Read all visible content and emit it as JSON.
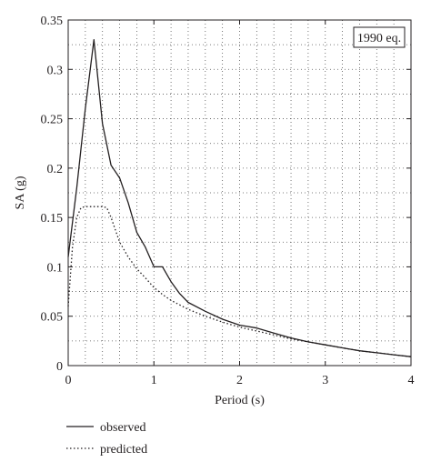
{
  "chart_data": {
    "type": "line",
    "title": "",
    "annotation": "1990 eq.",
    "xlabel": "Period (s)",
    "ylabel": "SA (g)",
    "xlim": [
      0,
      4
    ],
    "ylim": [
      0,
      0.35
    ],
    "xticks": [
      0,
      1,
      2,
      3,
      4
    ],
    "xtick_labels": [
      "0",
      "1",
      "2",
      "3",
      "4"
    ],
    "yticks": [
      0,
      0.05,
      0.1,
      0.15,
      0.2,
      0.25,
      0.3,
      0.35
    ],
    "ytick_labels": [
      "0",
      "0.05",
      "0.1",
      "0.15",
      "0.2",
      "0.25",
      "0.3",
      "0.35"
    ],
    "grid": true,
    "grid_style": "dotted",
    "minor_grid_step_x": 0.2,
    "minor_grid_step_y": 0.025,
    "legend_position": "bottom-left, below plot",
    "series": [
      {
        "name": "observed",
        "style": "solid",
        "color": "#231f20",
        "x": [
          0,
          0.1,
          0.2,
          0.3,
          0.4,
          0.5,
          0.6,
          0.7,
          0.8,
          0.9,
          1.0,
          1.1,
          1.2,
          1.3,
          1.4,
          1.6,
          1.8,
          2.0,
          2.2,
          2.4,
          2.6,
          2.8,
          3.0,
          3.2,
          3.4,
          3.6,
          3.8,
          4.0
        ],
        "y": [
          0.11,
          0.18,
          0.26,
          0.33,
          0.245,
          0.203,
          0.19,
          0.165,
          0.135,
          0.12,
          0.1,
          0.1,
          0.085,
          0.073,
          0.064,
          0.055,
          0.047,
          0.041,
          0.038,
          0.033,
          0.028,
          0.024,
          0.021,
          0.018,
          0.015,
          0.013,
          0.011,
          0.009
        ]
      },
      {
        "name": "predicted",
        "style": "dotted",
        "color": "#231f20",
        "x": [
          0,
          0.05,
          0.1,
          0.15,
          0.2,
          0.3,
          0.4,
          0.45,
          0.5,
          0.6,
          0.7,
          0.8,
          0.9,
          1.0,
          1.1,
          1.2,
          1.4,
          1.6,
          1.8,
          2.0,
          2.2,
          2.4,
          2.6,
          2.8,
          3.0,
          3.2,
          3.4,
          3.6,
          3.8,
          4.0
        ],
        "y": [
          0.06,
          0.12,
          0.15,
          0.16,
          0.161,
          0.161,
          0.161,
          0.16,
          0.15,
          0.125,
          0.11,
          0.098,
          0.089,
          0.079,
          0.072,
          0.066,
          0.057,
          0.05,
          0.044,
          0.039,
          0.035,
          0.031,
          0.027,
          0.024,
          0.021,
          0.018,
          0.015,
          0.013,
          0.011,
          0.009
        ]
      }
    ]
  }
}
